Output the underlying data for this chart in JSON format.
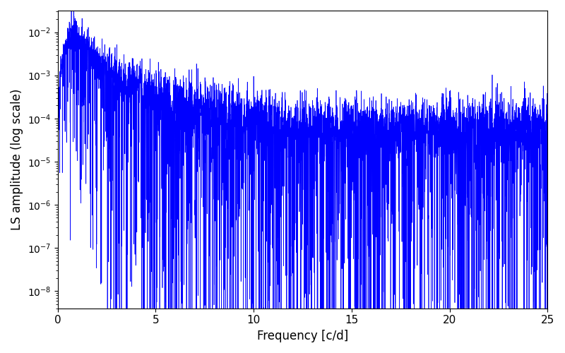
{
  "title": "",
  "xlabel": "Frequency [c/d]",
  "ylabel": "LS amplitude (log scale)",
  "line_color": "#0000ff",
  "line_width": 0.5,
  "xlim": [
    0,
    25
  ],
  "ylim_log": [
    -8.4,
    -1.5
  ],
  "xticklabels": [
    "0",
    "5",
    "10",
    "15",
    "20",
    "25"
  ],
  "xticks": [
    0,
    5,
    10,
    15,
    20,
    25
  ],
  "figsize": [
    8.0,
    5.0
  ],
  "dpi": 100,
  "background_color": "#ffffff",
  "seed": 42,
  "n_points": 5000,
  "freq_max": 25.0
}
